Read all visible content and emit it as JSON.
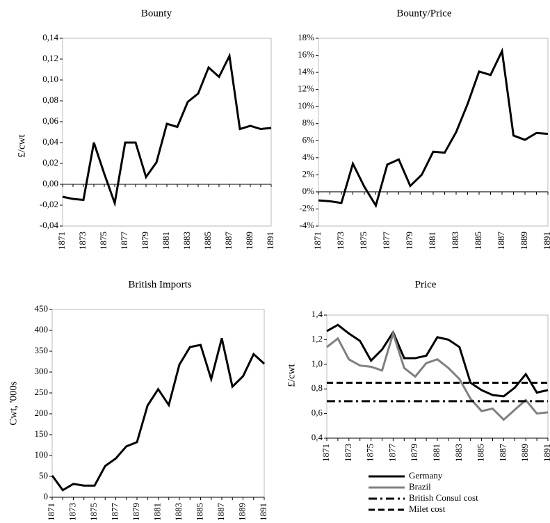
{
  "chart_data": [
    {
      "type": "line",
      "title": "Bounty",
      "ylabel": "£/cwt",
      "categories": [
        "1871",
        null,
        "1873",
        null,
        "1875",
        null,
        "1877",
        null,
        "1879",
        null,
        "1881",
        null,
        "1883",
        null,
        "1885",
        null,
        "1887",
        null,
        "1889",
        null,
        "1891"
      ],
      "values": [
        -0.012,
        -0.014,
        -0.015,
        0.04,
        0.01,
        -0.018,
        0.04,
        0.04,
        0.007,
        0.021,
        0.058,
        0.055,
        0.079,
        0.087,
        0.112,
        0.103,
        0.123,
        0.053,
        0.056,
        0.053,
        0.054
      ],
      "color": "#000000",
      "ylim": [
        -0.04,
        0.14
      ],
      "yticks": [
        {
          "value": -0.04,
          "label": "-0,04"
        },
        {
          "value": -0.02,
          "label": "-0,02"
        },
        {
          "value": 0,
          "label": "0,00"
        },
        {
          "value": 0.02,
          "label": "0,02"
        },
        {
          "value": 0.04,
          "label": "0,04"
        },
        {
          "value": 0.06,
          "label": "0,06"
        },
        {
          "value": 0.08,
          "label": "0,08"
        },
        {
          "value": 0.1,
          "label": "0,10"
        },
        {
          "value": 0.12,
          "label": "0,12"
        },
        {
          "value": 0.14,
          "label": "0,14"
        }
      ]
    },
    {
      "type": "line",
      "title": "Bounty/Price",
      "categories": [
        "1871",
        null,
        "1873",
        null,
        "1875",
        null,
        "1877",
        null,
        "1879",
        null,
        "1881",
        null,
        "1883",
        null,
        "1885",
        null,
        "1887",
        null,
        "1889",
        null,
        "1891"
      ],
      "values": [
        -1.0,
        -1.1,
        -1.3,
        3.3,
        0.6,
        -1.6,
        3.2,
        3.8,
        0.7,
        2.0,
        4.7,
        4.6,
        7.0,
        10.3,
        14.1,
        13.7,
        16.5,
        6.6,
        6.1,
        6.9,
        6.8
      ],
      "color": "#000000",
      "ylim": [
        -4,
        18
      ],
      "yticks": [
        {
          "value": -4,
          "label": "-4%"
        },
        {
          "value": -2,
          "label": "-2%"
        },
        {
          "value": 0,
          "label": "0%"
        },
        {
          "value": 2,
          "label": "2%"
        },
        {
          "value": 4,
          "label": "4%"
        },
        {
          "value": 6,
          "label": "6%"
        },
        {
          "value": 8,
          "label": "8%"
        },
        {
          "value": 10,
          "label": "10%"
        },
        {
          "value": 12,
          "label": "12%"
        },
        {
          "value": 14,
          "label": "14%"
        },
        {
          "value": 16,
          "label": "16%"
        },
        {
          "value": 18,
          "label": "18%"
        }
      ]
    },
    {
      "type": "line",
      "title": "British Imports",
      "ylabel": "Cwt, '000s",
      "categories": [
        "1871",
        null,
        "1873",
        null,
        "1875",
        null,
        "1877",
        null,
        "1879",
        null,
        "1881",
        null,
        "1883",
        null,
        "1885",
        null,
        "1887",
        null,
        "1889",
        null,
        "1891"
      ],
      "values": [
        52,
        17,
        32,
        28,
        28,
        75,
        93,
        122,
        132,
        220,
        259,
        221,
        318,
        360,
        365,
        283,
        381,
        265,
        290,
        343,
        320
      ],
      "color": "#000000",
      "ylim": [
        0,
        450
      ],
      "yticks": [
        0,
        50,
        100,
        150,
        200,
        250,
        300,
        350,
        400,
        450
      ]
    },
    {
      "type": "line",
      "title": "Price",
      "ylabel": "£/cwt",
      "categories": [
        "1871",
        null,
        "1873",
        null,
        "1875",
        null,
        "1877",
        null,
        "1879",
        null,
        "1881",
        null,
        "1883",
        null,
        "1885",
        null,
        "1887",
        null,
        "1889",
        null,
        "1891"
      ],
      "series": [
        {
          "name": "Germany",
          "color": "#000000",
          "dash": "solid",
          "values": [
            1.27,
            1.32,
            1.25,
            1.19,
            1.03,
            1.12,
            1.26,
            1.05,
            1.05,
            1.07,
            1.22,
            1.2,
            1.14,
            0.85,
            0.79,
            0.75,
            0.74,
            0.81,
            0.92,
            0.77,
            0.79
          ]
        },
        {
          "name": "Brazil",
          "color": "#808080",
          "dash": "solid",
          "values": [
            1.14,
            1.21,
            1.04,
            0.99,
            0.98,
            0.95,
            1.25,
            0.97,
            0.9,
            1.01,
            1.04,
            0.97,
            0.88,
            0.72,
            0.62,
            0.64,
            0.55,
            0.63,
            0.71,
            0.6,
            0.61
          ]
        },
        {
          "name": "British Consul cost",
          "color": "#000000",
          "dash": "dash-dot",
          "values": [
            0.7,
            0.7,
            0.7,
            0.7,
            0.7,
            0.7,
            0.7,
            0.7,
            0.7,
            0.7,
            0.7,
            0.7,
            0.7,
            0.7,
            0.7,
            0.7,
            0.7,
            0.7,
            0.7,
            0.7,
            0.7
          ]
        },
        {
          "name": "Milet cost",
          "color": "#000000",
          "dash": "dash",
          "values": [
            0.85,
            0.85,
            0.85,
            0.85,
            0.85,
            0.85,
            0.85,
            0.85,
            0.85,
            0.85,
            0.85,
            0.85,
            0.85,
            0.85,
            0.85,
            0.85,
            0.85,
            0.85,
            0.85,
            0.85,
            0.85
          ]
        }
      ],
      "ylim": [
        0.4,
        1.4
      ],
      "yticks": [
        {
          "value": 0.4,
          "label": "0,4"
        },
        {
          "value": 0.6,
          "label": "0,6"
        },
        {
          "value": 0.8,
          "label": "0,8"
        },
        {
          "value": 1.0,
          "label": "1,0"
        },
        {
          "value": 1.2,
          "label": "1,2"
        },
        {
          "value": 1.4,
          "label": "1,4"
        }
      ],
      "legend": "bottom"
    }
  ]
}
